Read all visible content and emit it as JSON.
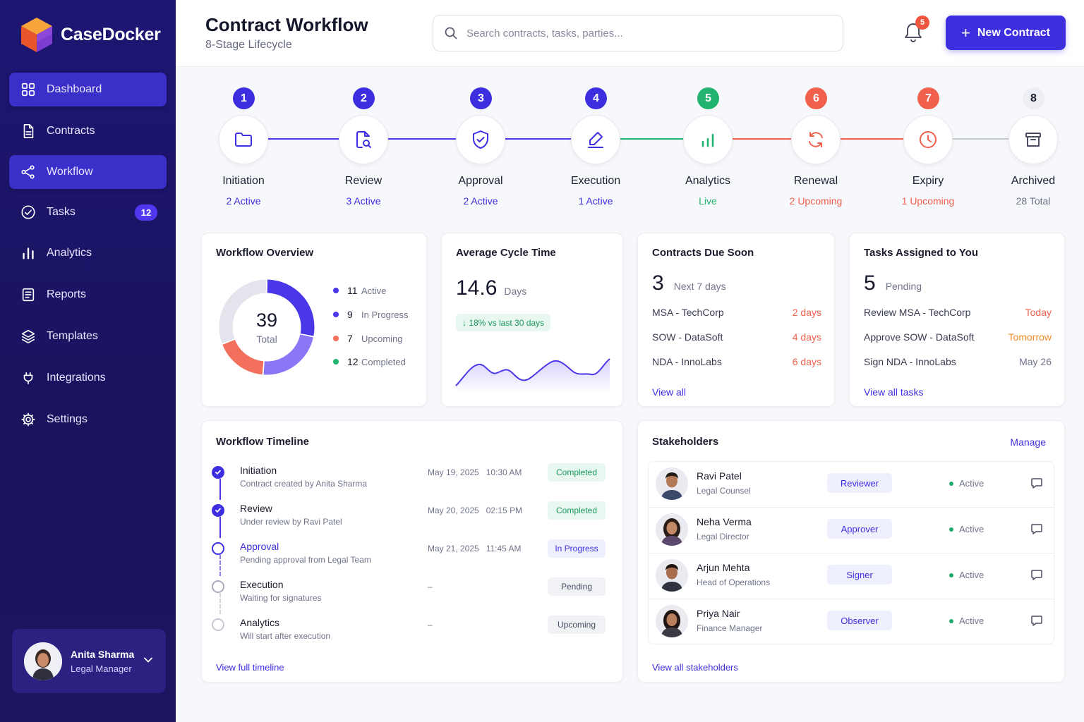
{
  "brand": {
    "name": "CaseDocker",
    "accent": "#3d2fe0",
    "sidebar_bg": "#1d1673"
  },
  "sidebar": {
    "items": [
      {
        "label": "Dashboard",
        "icon": "grid-icon",
        "active": true
      },
      {
        "label": "Contracts",
        "icon": "document-icon",
        "active": false
      },
      {
        "label": "Workflow",
        "icon": "share-nodes-icon",
        "active": true
      },
      {
        "label": "Tasks",
        "icon": "check-circle-icon",
        "badge": "12"
      },
      {
        "label": "Analytics",
        "icon": "bar-chart-icon"
      },
      {
        "label": "Reports",
        "icon": "report-icon"
      },
      {
        "label": "Templates",
        "icon": "layers-icon"
      },
      {
        "label": "Integrations",
        "icon": "plug-icon"
      },
      {
        "label": "Settings",
        "icon": "gear-icon"
      }
    ],
    "user": {
      "name": "Anita Sharma",
      "role": "Legal Manager"
    }
  },
  "header": {
    "title": "Contract Workflow",
    "subtitle": "8-Stage Lifecycle",
    "search_placeholder": "Search contracts, tasks, parties...",
    "notification_count": "5",
    "new_button": "New Contract"
  },
  "stages": [
    {
      "num": "1",
      "name": "Initiation",
      "status": "2 Active",
      "color": "#3d2fe0",
      "icon": "folder-icon"
    },
    {
      "num": "2",
      "name": "Review",
      "status": "3 Active",
      "color": "#3d2fe0",
      "icon": "document-search-icon"
    },
    {
      "num": "3",
      "name": "Approval",
      "status": "2 Active",
      "color": "#3d2fe0",
      "icon": "shield-check-icon"
    },
    {
      "num": "4",
      "name": "Execution",
      "status": "1 Active",
      "color": "#3d2fe0",
      "icon": "pen-sign-icon"
    },
    {
      "num": "5",
      "name": "Analytics",
      "status": "Live",
      "color": "#21b36f",
      "icon": "bar-chart-icon"
    },
    {
      "num": "6",
      "name": "Renewal",
      "status": "2 Upcoming",
      "color": "#f0604d",
      "icon": "refresh-icon"
    },
    {
      "num": "7",
      "name": "Expiry",
      "status": "1 Upcoming",
      "color": "#f0604d",
      "icon": "clock-icon"
    },
    {
      "num": "8",
      "name": "Archived",
      "status": "28 Total",
      "color": "#6b6f82",
      "icon": "archive-icon"
    }
  ],
  "overview": {
    "title": "Workflow Overview",
    "total": "39",
    "total_label": "Total",
    "legend": [
      {
        "count": "11",
        "label": "Active",
        "value": 11,
        "color": "#4a37e8"
      },
      {
        "count": "9",
        "label": "In Progress",
        "value": 9,
        "color": "#8b76f5"
      },
      {
        "count": "7",
        "label": "Upcoming",
        "value": 7,
        "color": "#f2705c"
      },
      {
        "count": "12",
        "label": "Completed",
        "value": 12,
        "color": "#e4e5ec",
        "dot_color": "#21b36f"
      }
    ]
  },
  "cycle": {
    "title": "Average Cycle Time",
    "value": "14.6",
    "unit": "Days",
    "change": "↓ 18% vs last 30 days"
  },
  "due_soon": {
    "title": "Contracts Due Soon",
    "count": "3",
    "count_label": "Next 7 days",
    "rows": [
      {
        "name": "MSA - TechCorp",
        "due": "2 days"
      },
      {
        "name": "SOW - DataSoft",
        "due": "4 days"
      },
      {
        "name": "NDA - InnoLabs",
        "due": "6 days"
      }
    ],
    "link": "View all"
  },
  "tasks": {
    "title": "Tasks Assigned to You",
    "count": "5",
    "count_label": "Pending",
    "rows": [
      {
        "name": "Review MSA - TechCorp",
        "due": "Today",
        "color": "#f0604d"
      },
      {
        "name": "Approve SOW - DataSoft",
        "due": "Tomorrow",
        "color": "#f08a2a"
      },
      {
        "name": "Sign NDA - InnoLabs",
        "due": "May 26",
        "color": "#70748a"
      }
    ],
    "link": "View all tasks"
  },
  "timeline": {
    "title": "Workflow Timeline",
    "items": [
      {
        "title": "Initiation",
        "desc": "Contract created by Anita Sharma",
        "date": "May 19, 2025   10:30 AM",
        "badge": "Completed",
        "state": "done"
      },
      {
        "title": "Review",
        "desc": "Under review by Ravi Patel",
        "date": "May 20, 2025   02:15 PM",
        "badge": "Completed",
        "state": "done"
      },
      {
        "title": "Approval",
        "desc": "Pending approval from Legal Team",
        "date": "May 21, 2025   11:45 AM",
        "badge": "In Progress",
        "state": "current"
      },
      {
        "title": "Execution",
        "desc": "Waiting for signatures",
        "date": "–",
        "badge": "Pending",
        "state": "pending"
      },
      {
        "title": "Analytics",
        "desc": "Will start after execution",
        "date": "–",
        "badge": "Upcoming",
        "state": "upcoming"
      }
    ],
    "link": "View full timeline"
  },
  "stakeholders": {
    "title": "Stakeholders",
    "manage": "Manage",
    "rows": [
      {
        "name": "Ravi Patel",
        "title": "Legal Counsel",
        "role": "Reviewer",
        "status": "Active",
        "gender": "m"
      },
      {
        "name": "Neha Verma",
        "title": "Legal Director",
        "role": "Approver",
        "status": "Active",
        "gender": "f"
      },
      {
        "name": "Arjun Mehta",
        "title": "Head of Operations",
        "role": "Signer",
        "status": "Active",
        "gender": "m"
      },
      {
        "name": "Priya Nair",
        "title": "Finance Manager",
        "role": "Observer",
        "status": "Active",
        "gender": "f"
      }
    ],
    "link": "View all stakeholders"
  }
}
